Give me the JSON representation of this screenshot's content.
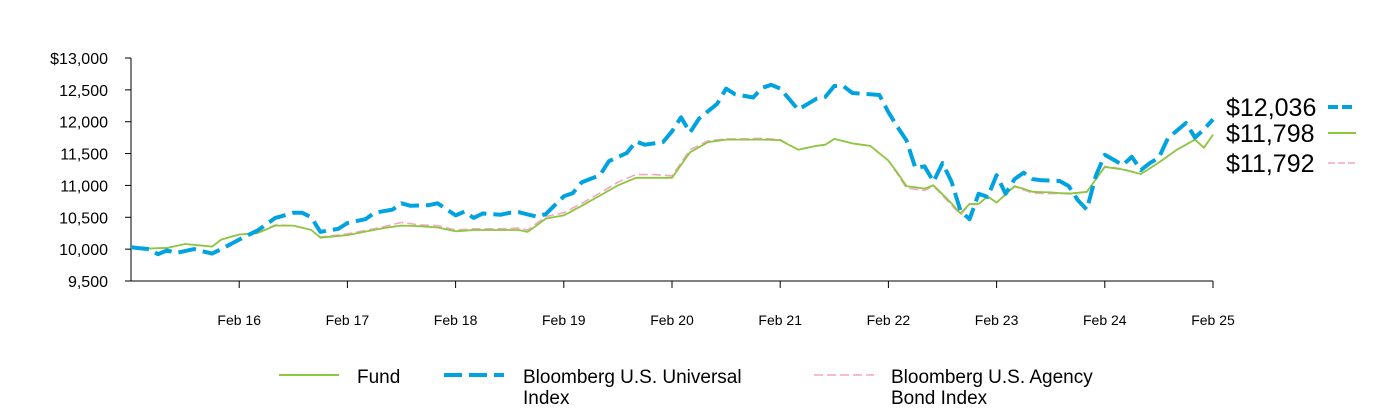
{
  "chart_data": {
    "type": "line",
    "y_tick_labels": [
      "$13,000",
      "12,500",
      "12,000",
      "11,500",
      "11,000",
      "10,500",
      "10,000",
      "9,500"
    ],
    "y_ticks": [
      13000,
      12500,
      12000,
      11500,
      11000,
      10500,
      10000,
      9500
    ],
    "ylim": [
      9500,
      13000
    ],
    "x_ticks": [
      {
        "month": 12,
        "label": "Feb 16"
      },
      {
        "month": 24,
        "label": "Feb 17"
      },
      {
        "month": 36,
        "label": "Feb 18"
      },
      {
        "month": 48,
        "label": "Feb 19"
      },
      {
        "month": 60,
        "label": "Feb 20"
      },
      {
        "month": 72,
        "label": "Feb 21"
      },
      {
        "month": 84,
        "label": "Feb 22"
      },
      {
        "month": 96,
        "label": "Feb 23"
      },
      {
        "month": 108,
        "label": "Feb 24"
      },
      {
        "month": 120,
        "label": "Feb 25"
      }
    ],
    "x_start": "Feb 15",
    "x_end": "Feb 25",
    "series": [
      {
        "name": "Fund",
        "color": "#8dc63f",
        "style": "solid",
        "end_label": "$11,798",
        "legend_lines": [
          "Fund"
        ],
        "anchors": [
          [
            0,
            10040
          ],
          [
            2,
            10010
          ],
          [
            4,
            10020
          ],
          [
            6,
            10080
          ],
          [
            9,
            10040
          ],
          [
            10,
            10150
          ],
          [
            12,
            10230
          ],
          [
            14,
            10250
          ],
          [
            16,
            10370
          ],
          [
            18,
            10370
          ],
          [
            20,
            10300
          ],
          [
            21,
            10180
          ],
          [
            24,
            10220
          ],
          [
            28,
            10330
          ],
          [
            30,
            10370
          ],
          [
            32,
            10360
          ],
          [
            34,
            10340
          ],
          [
            36,
            10280
          ],
          [
            38,
            10300
          ],
          [
            41,
            10300
          ],
          [
            43,
            10300
          ],
          [
            44,
            10270
          ],
          [
            46,
            10480
          ],
          [
            48,
            10530
          ],
          [
            50,
            10680
          ],
          [
            52,
            10840
          ],
          [
            54,
            11000
          ],
          [
            56,
            11120
          ],
          [
            58,
            11120
          ],
          [
            60,
            11120
          ],
          [
            62,
            11520
          ],
          [
            64,
            11680
          ],
          [
            66,
            11720
          ],
          [
            68,
            11720
          ],
          [
            70,
            11720
          ],
          [
            72,
            11710
          ],
          [
            74,
            11560
          ],
          [
            76,
            11620
          ],
          [
            77,
            11640
          ],
          [
            78,
            11730
          ],
          [
            80,
            11660
          ],
          [
            82,
            11620
          ],
          [
            84,
            11390
          ],
          [
            85,
            11200
          ],
          [
            86,
            10990
          ],
          [
            88,
            10950
          ],
          [
            89,
            11000
          ],
          [
            91,
            10720
          ],
          [
            92,
            10560
          ],
          [
            93,
            10710
          ],
          [
            94,
            10710
          ],
          [
            95,
            10830
          ],
          [
            96,
            10730
          ],
          [
            98,
            10990
          ],
          [
            100,
            10900
          ],
          [
            102,
            10890
          ],
          [
            104,
            10870
          ],
          [
            106,
            10900
          ],
          [
            108,
            11290
          ],
          [
            110,
            11250
          ],
          [
            112,
            11180
          ],
          [
            114,
            11360
          ],
          [
            116,
            11560
          ],
          [
            118,
            11720
          ],
          [
            119,
            11590
          ],
          [
            120,
            11798
          ]
        ]
      },
      {
        "name": "Bloomberg U.S. Universal Index",
        "color": "#00a3e0",
        "style": "dashed",
        "end_label": "$12,036",
        "legend_lines": [
          "Bloomberg U.S. Universal",
          "Index"
        ],
        "anchors": [
          [
            0,
            10030
          ],
          [
            2,
            10000
          ],
          [
            3,
            9920
          ],
          [
            4,
            9980
          ],
          [
            5,
            9940
          ],
          [
            7,
            10000
          ],
          [
            9,
            9930
          ],
          [
            10,
            10000
          ],
          [
            12,
            10150
          ],
          [
            14,
            10290
          ],
          [
            16,
            10490
          ],
          [
            18,
            10570
          ],
          [
            19,
            10570
          ],
          [
            20,
            10500
          ],
          [
            21,
            10270
          ],
          [
            23,
            10320
          ],
          [
            24,
            10410
          ],
          [
            26,
            10470
          ],
          [
            27,
            10570
          ],
          [
            29,
            10620
          ],
          [
            30,
            10720
          ],
          [
            31,
            10680
          ],
          [
            33,
            10690
          ],
          [
            34,
            10720
          ],
          [
            36,
            10530
          ],
          [
            37,
            10590
          ],
          [
            38,
            10490
          ],
          [
            39,
            10560
          ],
          [
            41,
            10540
          ],
          [
            42,
            10570
          ],
          [
            43,
            10580
          ],
          [
            45,
            10510
          ],
          [
            46,
            10550
          ],
          [
            48,
            10830
          ],
          [
            49,
            10880
          ],
          [
            50,
            11050
          ],
          [
            52,
            11160
          ],
          [
            53,
            11380
          ],
          [
            55,
            11510
          ],
          [
            56,
            11690
          ],
          [
            57,
            11640
          ],
          [
            59,
            11680
          ],
          [
            60,
            11850
          ],
          [
            61,
            12070
          ],
          [
            62,
            11830
          ],
          [
            63,
            12050
          ],
          [
            65,
            12280
          ],
          [
            66,
            12520
          ],
          [
            67,
            12430
          ],
          [
            69,
            12380
          ],
          [
            70,
            12530
          ],
          [
            71,
            12580
          ],
          [
            72,
            12520
          ],
          [
            74,
            12190
          ],
          [
            76,
            12360
          ],
          [
            77,
            12390
          ],
          [
            78,
            12560
          ],
          [
            79,
            12560
          ],
          [
            80,
            12450
          ],
          [
            82,
            12430
          ],
          [
            83,
            12420
          ],
          [
            84,
            12150
          ],
          [
            85,
            11920
          ],
          [
            86,
            11710
          ],
          [
            87,
            11270
          ],
          [
            88,
            11300
          ],
          [
            89,
            11060
          ],
          [
            90,
            11350
          ],
          [
            91,
            11060
          ],
          [
            92,
            10600
          ],
          [
            93,
            10470
          ],
          [
            94,
            10870
          ],
          [
            95,
            10820
          ],
          [
            96,
            11160
          ],
          [
            97,
            10870
          ],
          [
            98,
            11100
          ],
          [
            99,
            11200
          ],
          [
            100,
            11100
          ],
          [
            101,
            11080
          ],
          [
            103,
            11070
          ],
          [
            104,
            10990
          ],
          [
            105,
            10770
          ],
          [
            106,
            10620
          ],
          [
            107,
            11150
          ],
          [
            108,
            11480
          ],
          [
            110,
            11320
          ],
          [
            111,
            11450
          ],
          [
            112,
            11240
          ],
          [
            113,
            11350
          ],
          [
            114,
            11440
          ],
          [
            115,
            11740
          ],
          [
            117,
            11980
          ],
          [
            118,
            11750
          ],
          [
            119,
            11880
          ],
          [
            120,
            12036
          ]
        ]
      },
      {
        "name": "Bloomberg U.S. Agency Bond Index",
        "color": "#f4a6c6",
        "style": "dashed",
        "end_label": "$11,792",
        "legend_lines": [
          "Bloomberg U.S. Agency",
          "Bond Index"
        ],
        "anchors": [
          [
            0,
            10040
          ],
          [
            2,
            10010
          ],
          [
            4,
            10020
          ],
          [
            6,
            10080
          ],
          [
            9,
            10040
          ],
          [
            10,
            10150
          ],
          [
            12,
            10230
          ],
          [
            14,
            10260
          ],
          [
            16,
            10380
          ],
          [
            18,
            10370
          ],
          [
            20,
            10300
          ],
          [
            21,
            10190
          ],
          [
            24,
            10240
          ],
          [
            28,
            10350
          ],
          [
            30,
            10420
          ],
          [
            32,
            10380
          ],
          [
            34,
            10370
          ],
          [
            36,
            10300
          ],
          [
            38,
            10320
          ],
          [
            41,
            10320
          ],
          [
            43,
            10330
          ],
          [
            44,
            10300
          ],
          [
            46,
            10510
          ],
          [
            48,
            10570
          ],
          [
            50,
            10720
          ],
          [
            52,
            10880
          ],
          [
            54,
            11050
          ],
          [
            56,
            11170
          ],
          [
            58,
            11170
          ],
          [
            60,
            11150
          ],
          [
            62,
            11560
          ],
          [
            64,
            11700
          ],
          [
            66,
            11730
          ],
          [
            68,
            11730
          ],
          [
            70,
            11740
          ],
          [
            72,
            11720
          ],
          [
            74,
            11560
          ],
          [
            76,
            11620
          ],
          [
            77,
            11640
          ],
          [
            78,
            11730
          ],
          [
            80,
            11660
          ],
          [
            82,
            11620
          ],
          [
            84,
            11390
          ],
          [
            85,
            11180
          ],
          [
            86,
            10960
          ],
          [
            88,
            10920
          ],
          [
            89,
            10990
          ],
          [
            91,
            10690
          ],
          [
            92,
            10540
          ],
          [
            93,
            10700
          ],
          [
            94,
            10700
          ],
          [
            95,
            10830
          ],
          [
            96,
            10730
          ],
          [
            98,
            10980
          ],
          [
            100,
            10880
          ],
          [
            102,
            10870
          ],
          [
            104,
            10880
          ],
          [
            106,
            10890
          ],
          [
            108,
            11300
          ],
          [
            110,
            11260
          ],
          [
            112,
            11180
          ],
          [
            114,
            11360
          ],
          [
            116,
            11560
          ],
          [
            118,
            11720
          ],
          [
            119,
            11600
          ],
          [
            120,
            11792
          ]
        ]
      }
    ]
  }
}
